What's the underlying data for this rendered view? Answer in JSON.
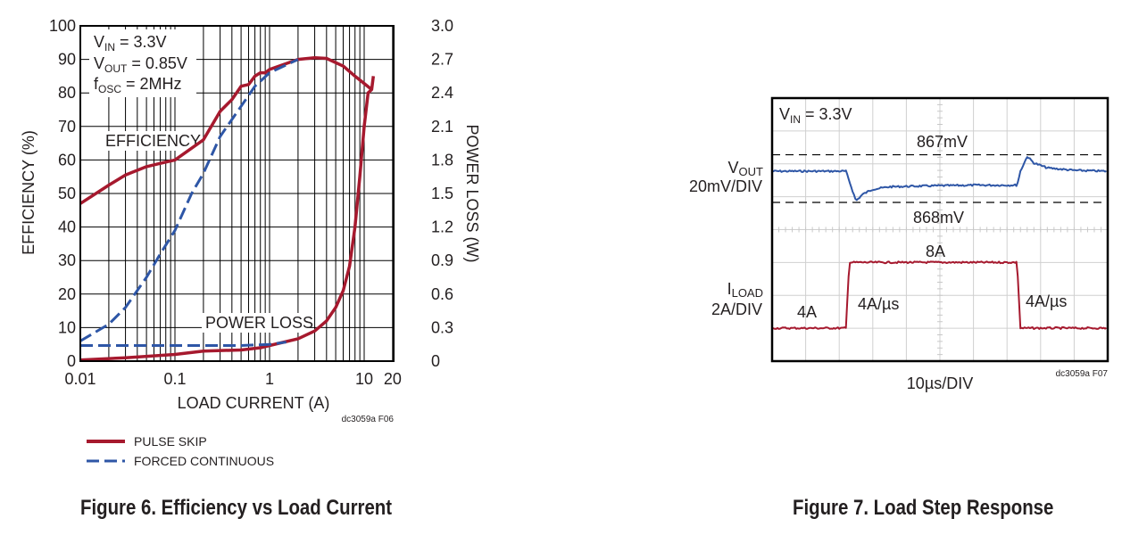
{
  "chart_data": [
    {
      "type": "line",
      "title": "Figure 6. Efficiency vs Load Current",
      "xlabel": "LOAD CURRENT (A)",
      "ylabel": "EFFICIENCY (%)",
      "y2label": "POWER LOSS (W)",
      "xscale": "log",
      "xlim": [
        0.01,
        20
      ],
      "ylim": [
        0,
        100
      ],
      "y2lim": [
        0,
        3.0
      ],
      "grid": true,
      "legend_position": "bottom-left",
      "xticks": [
        "0.01",
        "0.1",
        "1",
        "10",
        "20"
      ],
      "yticks": [
        "0",
        "10",
        "20",
        "30",
        "40",
        "50",
        "60",
        "70",
        "80",
        "90",
        "100"
      ],
      "y2ticks": [
        "0",
        "0.3",
        "0.6",
        "0.9",
        "1.2",
        "1.5",
        "1.8",
        "2.1",
        "2.4",
        "2.7",
        "3.0"
      ],
      "annotations": {
        "vin": {
          "main": "V",
          "sub": "IN",
          "rest": " = 3.3V"
        },
        "vout": {
          "main": "V",
          "sub": "OUT",
          "rest": " = 0.85V"
        },
        "fosc": {
          "main": "f",
          "sub": "OSC",
          "rest": " = 2MHz"
        },
        "efficiency": "EFFICIENCY",
        "power_loss": "POWER LOSS",
        "code": "dc3059a F06"
      },
      "colors": {
        "pulse_skip": "#a6192e",
        "forced_continuous": "#2e56a6"
      },
      "legend": [
        "PULSE SKIP",
        "FORCED CONTINUOUS"
      ],
      "series": [
        {
          "name": "PULSE SKIP",
          "quantity": "efficiency",
          "axis": "left",
          "x": [
            0.01,
            0.02,
            0.03,
            0.05,
            0.07,
            0.1,
            0.2,
            0.3,
            0.4,
            0.5,
            0.6,
            0.7,
            0.8,
            0.9,
            1,
            2,
            3,
            4,
            6,
            8,
            12
          ],
          "y": [
            47,
            52.5,
            55.5,
            58,
            59,
            60,
            66,
            74.5,
            78,
            82,
            82.5,
            85,
            86,
            86,
            87,
            90,
            90.5,
            90.3,
            88,
            85,
            81
          ]
        },
        {
          "name": "FORCED CONTINUOUS",
          "quantity": "efficiency",
          "axis": "left",
          "x": [
            0.01,
            0.02,
            0.03,
            0.05,
            0.07,
            0.1,
            0.15,
            0.2,
            0.3,
            0.5,
            0.7,
            1,
            2
          ],
          "y": [
            6,
            11,
            16,
            25,
            32,
            39,
            50,
            56,
            67,
            76,
            82,
            86,
            90
          ]
        },
        {
          "name": "PULSE SKIP",
          "quantity": "power_loss",
          "axis": "right",
          "x": [
            0.01,
            0.03,
            0.1,
            0.2,
            0.5,
            0.8,
            1,
            2,
            3,
            4,
            5,
            6,
            7,
            8,
            9,
            10,
            11,
            12,
            12.5
          ],
          "y": [
            0.01,
            0.03,
            0.06,
            0.09,
            0.1,
            0.12,
            0.14,
            0.2,
            0.27,
            0.36,
            0.48,
            0.63,
            0.85,
            1.2,
            1.65,
            2.1,
            2.4,
            2.43,
            2.55
          ]
        },
        {
          "name": "FORCED CONTINUOUS",
          "quantity": "power_loss",
          "axis": "right",
          "x": [
            0.01,
            0.1,
            0.5,
            1,
            1.5
          ],
          "y": [
            0.14,
            0.14,
            0.14,
            0.15,
            0.17
          ]
        }
      ]
    },
    {
      "type": "line",
      "title": "Figure 7. Load Step Response",
      "xlabel": "10µs/DIV",
      "time_per_div_us": 10,
      "divisions": {
        "x": 10,
        "y": 8
      },
      "grid": true,
      "annotations": {
        "vin": {
          "main": "V",
          "sub": "IN",
          "rest": " = 3.3V"
        },
        "upper": "867mV",
        "lower": "868mV",
        "vout_label": {
          "main": "V",
          "sub": "OUT"
        },
        "vout_scale": "20mV/DIV",
        "iload_label": {
          "main": "I",
          "sub": "LOAD"
        },
        "iload_scale": "2A/DIV",
        "i_low": "4A",
        "i_high": "8A",
        "slew_up": "4A/µs",
        "slew_down": "4A/µs",
        "code": "dc3059a F07"
      },
      "colors": {
        "vout": "#2e56a6",
        "iload": "#a6192e"
      },
      "series": [
        {
          "name": "VOUT",
          "unit": "mV deviation",
          "t_us": [
            0,
            22,
            23,
            25,
            27,
            30,
            35,
            45,
            60,
            73,
            74,
            76,
            78,
            82,
            90,
            100
          ],
          "y": [
            0,
            0,
            -6,
            -18,
            -14,
            -11,
            -9.5,
            -9,
            -8.5,
            -8.5,
            0,
            9,
            5,
            2,
            0.5,
            0
          ]
        },
        {
          "name": "ILOAD",
          "unit": "A",
          "t_us": [
            0,
            22,
            23,
            73,
            74,
            100
          ],
          "y": [
            4,
            4,
            8,
            8,
            4,
            4
          ]
        }
      ],
      "reference_lines_mV": [
        10,
        -19
      ]
    }
  ],
  "captions": {
    "fig6": "Figure 6. Efficiency vs Load Current",
    "fig7": "Figure 7. Load Step Response"
  }
}
